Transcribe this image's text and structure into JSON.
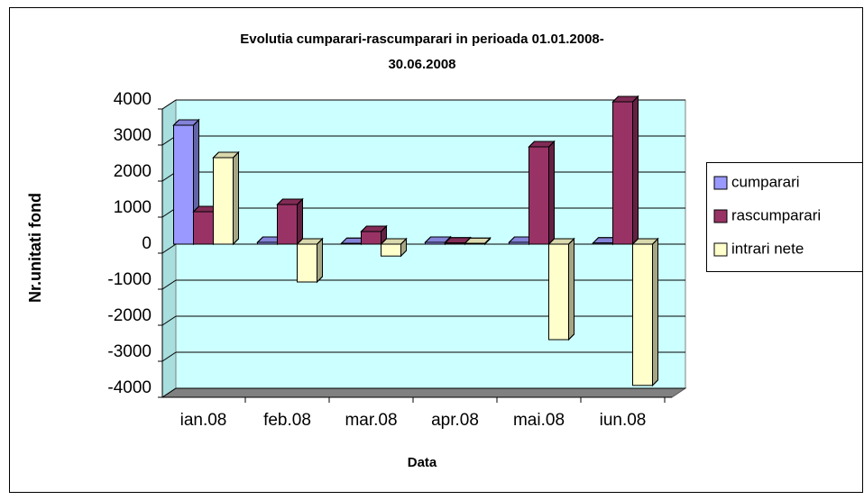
{
  "chart_data": {
    "type": "bar3d",
    "title": [
      "Evolutia cumparari-rascumparari in perioada 01.01.2008-",
      "30.06.2008"
    ],
    "y_label": "Nr.unitati fond",
    "x_label": "Data",
    "categories": [
      "ian.08",
      "feb.08",
      "mar.08",
      "apr.08",
      "mai.08",
      "iun.08"
    ],
    "series": [
      {
        "name": "cumparari",
        "color": "#9999ff",
        "values": [
          3300,
          50,
          20,
          50,
          50,
          30
        ]
      },
      {
        "name": "rascumparari",
        "color": "#993366",
        "values": [
          900,
          1100,
          350,
          30,
          2700,
          3950
        ]
      },
      {
        "name": "intrari nete",
        "color": "#ffffcc",
        "values": [
          2400,
          -1050,
          -330,
          20,
          -2650,
          -3920
        ]
      }
    ],
    "ylim": [
      -4000,
      4000
    ],
    "yticks": [
      -4000,
      -3000,
      -2000,
      -1000,
      0,
      1000,
      2000,
      3000,
      4000
    ],
    "grid": true,
    "legend": "right"
  }
}
